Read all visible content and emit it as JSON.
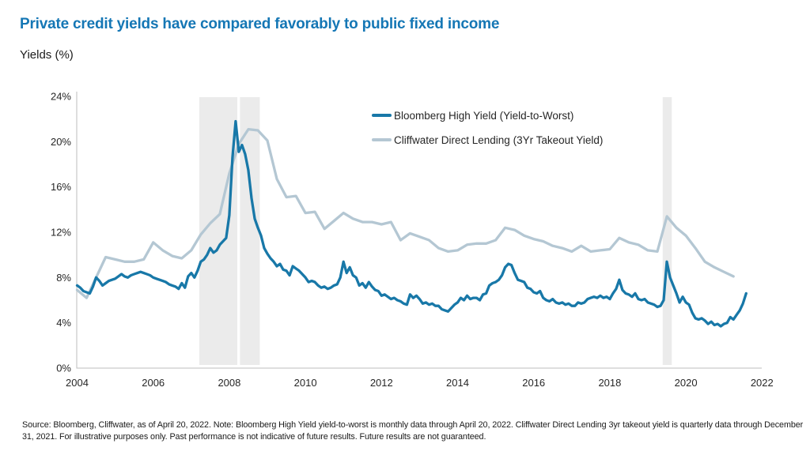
{
  "title": "Private credit yields have compared favorably to public fixed income",
  "subtitle": "Yields (%)",
  "footnote_line1": "Source: Bloomberg, Cliffwater, as of April 20, 2022. Note: Bloomberg High Yield yield-to-worst is monthly data through April 20, 2022. Cliffwater Direct Lending 3yr takeout yield is quarterly data through December",
  "footnote_line2": "31, 2021. For illustrative purposes only. Past performance is not indicative of future results. Future results are not guaranteed.",
  "colors": {
    "title": "#1577b5",
    "axis": "#bdbdbd",
    "tick_text": "#262626",
    "recession_band": "#ebebeb",
    "bloomberg_line": "#1878a8",
    "cliffwater_line": "#b4c7d3"
  },
  "chart_data": {
    "type": "line",
    "title": "Private credit yields have compared favorably to public fixed income",
    "xlabel": "",
    "ylabel": "Yields (%)",
    "ylim": [
      0,
      24
    ],
    "y_tick_values": [
      0,
      4,
      8,
      12,
      16,
      20,
      24
    ],
    "y_tick_labels": [
      "0%",
      "4%",
      "8%",
      "12%",
      "16%",
      "20%",
      "24%"
    ],
    "x_tick_labels": [
      2004,
      2006,
      2008,
      2010,
      2012,
      2014,
      2016,
      2018,
      2020,
      2022
    ],
    "grid": false,
    "legend_position": "top-center-inside",
    "highlight_bands": [
      {
        "name": "recession-2008-part1",
        "from": 2007.96,
        "to": 2008.96
      },
      {
        "name": "recession-2008-part2",
        "from": 2009.03,
        "to": 2009.55
      },
      {
        "name": "recession-covid-2020",
        "from": 2020.14,
        "to": 2020.38
      }
    ],
    "series": [
      {
        "name": "Cliffwater Direct Lending (3Yr Takeout Yield)",
        "color": "#b4c7d3",
        "frequency": "quarterly",
        "x_start": 2004.75,
        "x_step": 0.25,
        "values": [
          6.9,
          6.2,
          8.0,
          9.8,
          9.6,
          9.4,
          9.4,
          9.6,
          11.1,
          10.4,
          9.9,
          9.7,
          10.4,
          11.8,
          12.8,
          13.6,
          17.2,
          19.8,
          21.1,
          21.0,
          20.1,
          16.7,
          15.1,
          15.2,
          13.7,
          13.8,
          12.3,
          13.0,
          13.7,
          13.2,
          12.9,
          12.9,
          12.7,
          12.9,
          11.3,
          11.9,
          11.6,
          11.3,
          10.6,
          10.3,
          10.4,
          10.9,
          11.0,
          11.0,
          11.3,
          12.4,
          12.2,
          11.7,
          11.4,
          11.2,
          10.8,
          10.6,
          10.3,
          10.8,
          10.3,
          10.4,
          10.5,
          11.5,
          11.1,
          10.9,
          10.4,
          10.3,
          13.4,
          12.4,
          11.7,
          10.6,
          9.4,
          8.9,
          8.5,
          8.1
        ]
      },
      {
        "name": "Bloomberg High Yield (Yield-to-Worst)",
        "color": "#1878a8",
        "frequency": "monthly",
        "x_start": 2004.75,
        "x_step": 0.0833333,
        "values": [
          7.3,
          7.1,
          6.8,
          6.7,
          6.6,
          7.2,
          8.0,
          7.7,
          7.3,
          7.5,
          7.7,
          7.8,
          7.9,
          8.1,
          8.3,
          8.1,
          8.0,
          8.2,
          8.3,
          8.4,
          8.5,
          8.4,
          8.3,
          8.2,
          8.0,
          7.9,
          7.8,
          7.7,
          7.6,
          7.4,
          7.3,
          7.2,
          7.0,
          7.5,
          7.1,
          8.1,
          8.4,
          8.0,
          8.6,
          9.4,
          9.6,
          10.0,
          10.6,
          10.2,
          10.4,
          10.9,
          11.2,
          11.5,
          13.5,
          18.6,
          21.8,
          19.1,
          19.7,
          18.9,
          17.5,
          15.0,
          13.2,
          12.4,
          11.7,
          10.6,
          10.1,
          9.7,
          9.4,
          9.0,
          9.2,
          8.7,
          8.6,
          8.2,
          9.0,
          8.8,
          8.6,
          8.3,
          8.0,
          7.6,
          7.7,
          7.6,
          7.3,
          7.1,
          7.2,
          7.0,
          7.1,
          7.3,
          7.4,
          8.0,
          9.4,
          8.4,
          8.9,
          8.2,
          8.0,
          7.3,
          7.5,
          7.1,
          7.6,
          7.2,
          6.9,
          6.8,
          6.4,
          6.5,
          6.3,
          6.1,
          6.2,
          6.0,
          5.9,
          5.7,
          5.6,
          6.5,
          6.2,
          6.4,
          6.1,
          5.7,
          5.8,
          5.6,
          5.7,
          5.5,
          5.5,
          5.2,
          5.1,
          5.0,
          5.3,
          5.6,
          5.8,
          6.2,
          6.0,
          6.4,
          6.1,
          6.2,
          6.2,
          6.0,
          6.5,
          6.6,
          7.3,
          7.5,
          7.6,
          7.8,
          8.2,
          8.9,
          9.2,
          9.1,
          8.4,
          7.8,
          7.7,
          7.6,
          7.1,
          7.0,
          6.7,
          6.6,
          6.8,
          6.2,
          6.0,
          5.9,
          6.1,
          5.8,
          5.7,
          5.8,
          5.6,
          5.7,
          5.5,
          5.5,
          5.8,
          5.7,
          5.8,
          6.1,
          6.2,
          6.3,
          6.2,
          6.4,
          6.2,
          6.3,
          6.1,
          6.6,
          7.0,
          7.8,
          6.9,
          6.6,
          6.5,
          6.3,
          6.6,
          6.1,
          6.0,
          6.1,
          5.8,
          5.7,
          5.6,
          5.4,
          5.5,
          6.0,
          9.4,
          8.0,
          7.3,
          6.6,
          5.8,
          6.3,
          5.8,
          5.6,
          4.9,
          4.4,
          4.3,
          4.4,
          4.2,
          3.9,
          4.1,
          3.8,
          3.9,
          3.7,
          3.9,
          4.0,
          4.5,
          4.3,
          4.7,
          5.1,
          5.7,
          6.6
        ]
      }
    ]
  }
}
